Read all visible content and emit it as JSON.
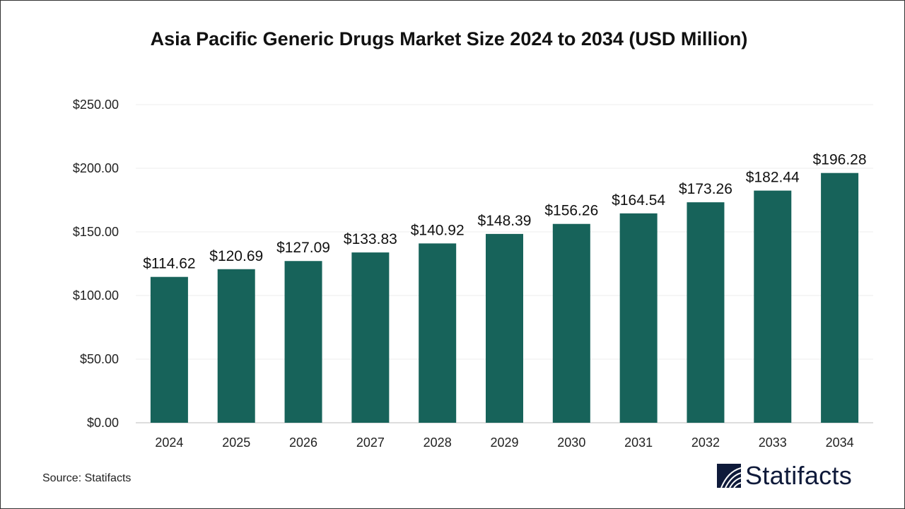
{
  "title": "Asia Pacific Generic Drugs Market Size 2024 to 2034 (USD Million)",
  "source": "Source: Statifacts",
  "logo_text": "Statifacts",
  "colors": {
    "bar": "#17635a",
    "logo": "#0f1a3a"
  },
  "chart_data": {
    "type": "bar",
    "title": "Asia Pacific Generic Drugs Market Size 2024 to 2034 (USD Million)",
    "categories": [
      "2024",
      "2025",
      "2026",
      "2027",
      "2028",
      "2029",
      "2030",
      "2031",
      "2032",
      "2033",
      "2034"
    ],
    "values": [
      114.62,
      120.69,
      127.09,
      133.83,
      140.92,
      148.39,
      156.26,
      164.54,
      173.26,
      182.44,
      196.28
    ],
    "data_labels": [
      "$114.62",
      "$120.69",
      "$127.09",
      "$133.83",
      "$140.92",
      "$148.39",
      "$156.26",
      "$164.54",
      "$173.26",
      "$182.44",
      "$196.28"
    ],
    "yticks": [
      "$0.00",
      "$50.00",
      "$100.00",
      "$150.00",
      "$200.00",
      "$250.00"
    ],
    "ylim": [
      0,
      250
    ],
    "xlabel": "",
    "ylabel": "",
    "grid": true
  }
}
